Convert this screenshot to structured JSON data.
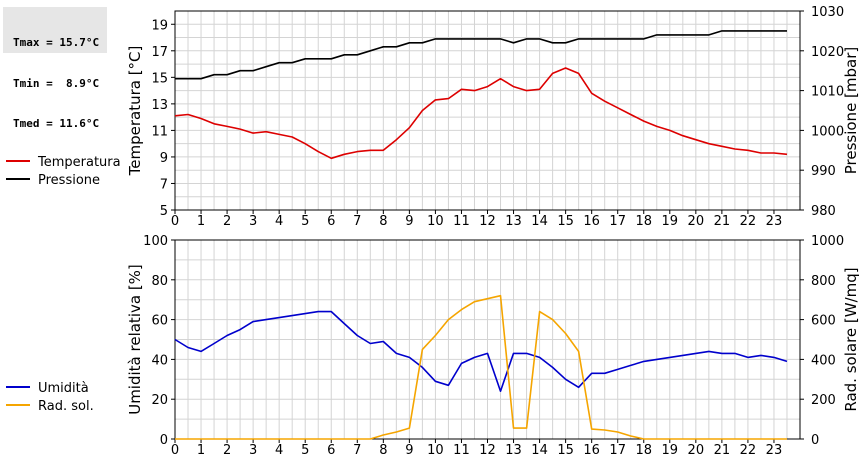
{
  "stats": [
    {
      "label": "Tmax",
      "value": "15.7°C"
    },
    {
      "label": "Tmin",
      "value": " 8.9°C"
    },
    {
      "label": "Tmed",
      "value": "11.6°C"
    }
  ],
  "chart_data": [
    {
      "type": "line",
      "xlim": [
        0,
        24
      ],
      "x_ticks": [
        0,
        1,
        2,
        3,
        4,
        5,
        6,
        7,
        8,
        9,
        10,
        11,
        12,
        13,
        14,
        15,
        16,
        17,
        18,
        19,
        20,
        21,
        22,
        23
      ],
      "ylabel_left": "Temperatura [°C]",
      "ylim_left": [
        5,
        20
      ],
      "y_ticks_left": [
        5,
        7,
        9,
        11,
        13,
        15,
        17,
        19
      ],
      "ylabel_right": "Pressione [mbar]",
      "ylim_right": [
        980,
        1030
      ],
      "y_ticks_right": [
        980,
        990,
        1000,
        1010,
        1020,
        1030
      ],
      "grid": true,
      "legend_position": "left",
      "series": [
        {
          "name": "Temperatura",
          "axis": "left",
          "color": "#dd0000",
          "points": [
            [
              0,
              12.1
            ],
            [
              0.5,
              12.2
            ],
            [
              1,
              11.9
            ],
            [
              1.5,
              11.5
            ],
            [
              2,
              11.3
            ],
            [
              2.5,
              11.1
            ],
            [
              3,
              10.8
            ],
            [
              3.5,
              10.9
            ],
            [
              4,
              10.7
            ],
            [
              4.5,
              10.5
            ],
            [
              5,
              10.0
            ],
            [
              5.5,
              9.4
            ],
            [
              6,
              8.9
            ],
            [
              6.5,
              9.2
            ],
            [
              7,
              9.4
            ],
            [
              7.5,
              9.5
            ],
            [
              8,
              9.5
            ],
            [
              8.5,
              10.3
            ],
            [
              9,
              11.2
            ],
            [
              9.5,
              12.5
            ],
            [
              10,
              13.3
            ],
            [
              10.5,
              13.4
            ],
            [
              11,
              14.1
            ],
            [
              11.5,
              14.0
            ],
            [
              12,
              14.3
            ],
            [
              12.5,
              14.9
            ],
            [
              13,
              14.3
            ],
            [
              13.5,
              14.0
            ],
            [
              14,
              14.1
            ],
            [
              14.5,
              15.3
            ],
            [
              15,
              15.7
            ],
            [
              15.5,
              15.3
            ],
            [
              16,
              13.8
            ],
            [
              16.5,
              13.2
            ],
            [
              17,
              12.7
            ],
            [
              17.5,
              12.2
            ],
            [
              18,
              11.7
            ],
            [
              18.5,
              11.3
            ],
            [
              19,
              11.0
            ],
            [
              19.5,
              10.6
            ],
            [
              20,
              10.3
            ],
            [
              20.5,
              10.0
            ],
            [
              21,
              9.8
            ],
            [
              21.5,
              9.6
            ],
            [
              22,
              9.5
            ],
            [
              22.5,
              9.3
            ],
            [
              23,
              9.3
            ],
            [
              23.5,
              9.2
            ]
          ]
        },
        {
          "name": "Pressione",
          "axis": "right",
          "color": "#000000",
          "points": [
            [
              0,
              1013
            ],
            [
              0.5,
              1013
            ],
            [
              1,
              1013
            ],
            [
              1.5,
              1014
            ],
            [
              2,
              1014
            ],
            [
              2.5,
              1015
            ],
            [
              3,
              1015
            ],
            [
              3.5,
              1016
            ],
            [
              4,
              1017
            ],
            [
              4.5,
              1017
            ],
            [
              5,
              1018
            ],
            [
              5.5,
              1018
            ],
            [
              6,
              1018
            ],
            [
              6.5,
              1019
            ],
            [
              7,
              1019
            ],
            [
              7.5,
              1020
            ],
            [
              8,
              1021
            ],
            [
              8.5,
              1021
            ],
            [
              9,
              1022
            ],
            [
              9.5,
              1022
            ],
            [
              10,
              1023
            ],
            [
              10.5,
              1023
            ],
            [
              11,
              1023
            ],
            [
              11.5,
              1023
            ],
            [
              12,
              1023
            ],
            [
              12.5,
              1023
            ],
            [
              13,
              1022
            ],
            [
              13.5,
              1023
            ],
            [
              14,
              1023
            ],
            [
              14.5,
              1022
            ],
            [
              15,
              1022
            ],
            [
              15.5,
              1023
            ],
            [
              16,
              1023
            ],
            [
              16.5,
              1023
            ],
            [
              17,
              1023
            ],
            [
              17.5,
              1023
            ],
            [
              18,
              1023
            ],
            [
              18.5,
              1024
            ],
            [
              19,
              1024
            ],
            [
              19.5,
              1024
            ],
            [
              20,
              1024
            ],
            [
              20.5,
              1024
            ],
            [
              21,
              1025
            ],
            [
              21.5,
              1025
            ],
            [
              22,
              1025
            ],
            [
              22.5,
              1025
            ],
            [
              23,
              1025
            ],
            [
              23.5,
              1025
            ]
          ]
        }
      ]
    },
    {
      "type": "line",
      "xlim": [
        0,
        24
      ],
      "x_ticks": [
        0,
        1,
        2,
        3,
        4,
        5,
        6,
        7,
        8,
        9,
        10,
        11,
        12,
        13,
        14,
        15,
        16,
        17,
        18,
        19,
        20,
        21,
        22,
        23
      ],
      "ylabel_left": "Umidità relativa [%]",
      "ylim_left": [
        0,
        100
      ],
      "y_ticks_left": [
        0,
        20,
        40,
        60,
        80,
        100
      ],
      "ylabel_right": "Rad. solare [W/mq]",
      "ylim_right": [
        0,
        1000
      ],
      "y_ticks_right": [
        0,
        200,
        400,
        600,
        800,
        1000
      ],
      "grid": true,
      "legend_position": "left",
      "series": [
        {
          "name": "Umidità",
          "axis": "left",
          "color": "#0000cc",
          "points": [
            [
              0,
              50
            ],
            [
              0.5,
              46
            ],
            [
              1,
              44
            ],
            [
              1.5,
              48
            ],
            [
              2,
              52
            ],
            [
              2.5,
              55
            ],
            [
              3,
              59
            ],
            [
              3.5,
              60
            ],
            [
              4,
              61
            ],
            [
              4.5,
              62
            ],
            [
              5,
              63
            ],
            [
              5.5,
              64
            ],
            [
              6,
              64
            ],
            [
              6.5,
              58
            ],
            [
              7,
              52
            ],
            [
              7.5,
              48
            ],
            [
              8,
              49
            ],
            [
              8.5,
              43
            ],
            [
              9,
              41
            ],
            [
              9.5,
              36
            ],
            [
              10,
              29
            ],
            [
              10.5,
              27
            ],
            [
              11,
              38
            ],
            [
              11.5,
              41
            ],
            [
              12,
              43
            ],
            [
              12.5,
              24
            ],
            [
              13,
              43
            ],
            [
              13.5,
              43
            ],
            [
              14,
              41
            ],
            [
              14.5,
              36
            ],
            [
              15,
              30
            ],
            [
              15.5,
              26
            ],
            [
              16,
              33
            ],
            [
              16.5,
              33
            ],
            [
              17,
              35
            ],
            [
              17.5,
              37
            ],
            [
              18,
              39
            ],
            [
              18.5,
              40
            ],
            [
              19,
              41
            ],
            [
              19.5,
              42
            ],
            [
              20,
              43
            ],
            [
              20.5,
              44
            ],
            [
              21,
              43
            ],
            [
              21.5,
              43
            ],
            [
              22,
              41
            ],
            [
              22.5,
              42
            ],
            [
              23,
              41
            ],
            [
              23.5,
              39
            ]
          ]
        },
        {
          "name": "Rad. sol.",
          "axis": "right",
          "color": "#f5a500",
          "points": [
            [
              0,
              0
            ],
            [
              1,
              0
            ],
            [
              2,
              0
            ],
            [
              3,
              0
            ],
            [
              4,
              0
            ],
            [
              5,
              0
            ],
            [
              6,
              0
            ],
            [
              7,
              0
            ],
            [
              7.5,
              0
            ],
            [
              8,
              20
            ],
            [
              8.5,
              35
            ],
            [
              9,
              55
            ],
            [
              9.5,
              450
            ],
            [
              10,
              520
            ],
            [
              10.5,
              600
            ],
            [
              11,
              650
            ],
            [
              11.5,
              690
            ],
            [
              12,
              705
            ],
            [
              12.5,
              720
            ],
            [
              13,
              55
            ],
            [
              13.5,
              55
            ],
            [
              14,
              640
            ],
            [
              14.5,
              600
            ],
            [
              15,
              530
            ],
            [
              15.5,
              440
            ],
            [
              16,
              50
            ],
            [
              16.5,
              45
            ],
            [
              17,
              35
            ],
            [
              17.5,
              15
            ],
            [
              18,
              0
            ],
            [
              19,
              0
            ],
            [
              20,
              0
            ],
            [
              21,
              0
            ],
            [
              22,
              0
            ],
            [
              23,
              0
            ],
            [
              23.5,
              0
            ]
          ]
        }
      ]
    }
  ]
}
